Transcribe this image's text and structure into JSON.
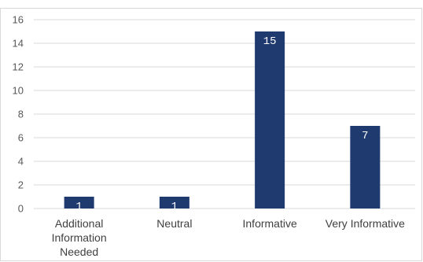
{
  "chart_data": {
    "type": "bar",
    "categories": [
      [
        "Additional",
        "Information",
        "Needed"
      ],
      [
        "Neutral"
      ],
      [
        "Informative"
      ],
      [
        "Very Informative"
      ]
    ],
    "values": [
      1,
      1,
      15,
      7
    ],
    "ylim": [
      0,
      16
    ],
    "yticks": [
      0,
      2,
      4,
      6,
      8,
      10,
      12,
      14,
      16
    ],
    "grid": true,
    "legend": "none",
    "bar_color": "#1f3a6e"
  }
}
